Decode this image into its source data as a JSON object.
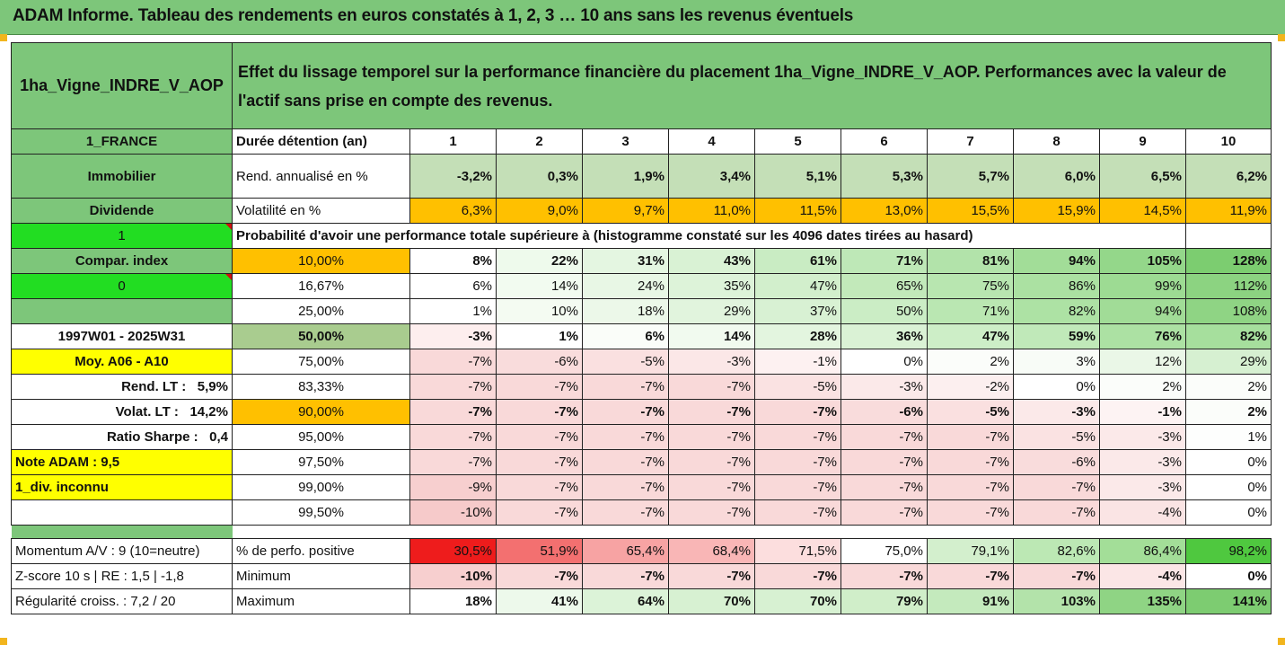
{
  "header": {
    "title": "ADAM Informe. Tableau des rendements en euros constatés à 1, 2, 3 … 10 ans sans les revenus éventuels"
  },
  "left": {
    "asset": "1ha_Vigne_INDRE_V_AOP",
    "country": "1_FRANCE",
    "category": "Immobilier",
    "dividend_label": "Dividende",
    "dividend_value": "1",
    "compar_index": "Compar. index",
    "compar_value": "0",
    "period": "1997W01 - 2025W31",
    "moy": "Moy. A06 - A10",
    "rend_lt_label": "Rend. LT :",
    "rend_lt_value": "5,9%",
    "volat_lt_label": "Volat. LT :",
    "volat_lt_value": "14,2%",
    "sharpe_label": "Ratio Sharpe :",
    "sharpe_value": "0,4",
    "note": "Note ADAM : 9,5",
    "div": "1_div. inconnu",
    "momentum": "Momentum A/V : 9 (10=neutre)",
    "zscore": "Z-score 10 s  |  RE : 1,5  |  -1,8",
    "regularite": "Régularité croiss. : 7,2 / 20"
  },
  "description": "Effet du lissage temporel sur la performance financière du placement 1ha_Vigne_INDRE_V_AOP. Performances avec la valeur de l'actif sans prise en compte des revenus.",
  "row_labels": {
    "duree": "Durée détention (an)",
    "rend": "Rend. annualisé en %",
    "volat": "Volatilité en %",
    "proba": "Probabilité d'avoir une performance totale supérieure à (histogramme constaté sur les 4096 dates tirées au hasard)",
    "perfo_pos": "% de perfo. positive",
    "minimum": "Minimum",
    "maximum": "Maximum"
  },
  "years": [
    "1",
    "2",
    "3",
    "4",
    "5",
    "6",
    "7",
    "8",
    "9",
    "10"
  ],
  "rend": [
    "-3,2%",
    "0,3%",
    "1,9%",
    "3,4%",
    "5,1%",
    "5,3%",
    "5,7%",
    "6,0%",
    "6,5%",
    "6,2%"
  ],
  "volat": [
    "6,3%",
    "9,0%",
    "9,7%",
    "11,0%",
    "11,5%",
    "13,0%",
    "15,5%",
    "15,9%",
    "14,5%",
    "11,9%"
  ],
  "quantiles": [
    {
      "label": "10,00%",
      "values": [
        "8%",
        "22%",
        "31%",
        "43%",
        "61%",
        "71%",
        "81%",
        "94%",
        "105%",
        "128%"
      ]
    },
    {
      "label": "16,67%",
      "values": [
        "6%",
        "14%",
        "24%",
        "35%",
        "47%",
        "65%",
        "75%",
        "86%",
        "99%",
        "112%"
      ]
    },
    {
      "label": "25,00%",
      "values": [
        "1%",
        "10%",
        "18%",
        "29%",
        "37%",
        "50%",
        "71%",
        "82%",
        "94%",
        "108%"
      ]
    },
    {
      "label": "50,00%",
      "values": [
        "-3%",
        "1%",
        "6%",
        "14%",
        "28%",
        "36%",
        "47%",
        "59%",
        "76%",
        "82%"
      ]
    },
    {
      "label": "75,00%",
      "values": [
        "-7%",
        "-6%",
        "-5%",
        "-3%",
        "-1%",
        "0%",
        "2%",
        "3%",
        "12%",
        "29%"
      ]
    },
    {
      "label": "83,33%",
      "values": [
        "-7%",
        "-7%",
        "-7%",
        "-7%",
        "-5%",
        "-3%",
        "-2%",
        "0%",
        "2%",
        "2%"
      ]
    },
    {
      "label": "90,00%",
      "values": [
        "-7%",
        "-7%",
        "-7%",
        "-7%",
        "-7%",
        "-6%",
        "-5%",
        "-3%",
        "-1%",
        "2%"
      ]
    },
    {
      "label": "95,00%",
      "values": [
        "-7%",
        "-7%",
        "-7%",
        "-7%",
        "-7%",
        "-7%",
        "-7%",
        "-5%",
        "-3%",
        "1%"
      ]
    },
    {
      "label": "97,50%",
      "values": [
        "-7%",
        "-7%",
        "-7%",
        "-7%",
        "-7%",
        "-7%",
        "-7%",
        "-6%",
        "-3%",
        "0%"
      ]
    },
    {
      "label": "99,00%",
      "values": [
        "-9%",
        "-7%",
        "-7%",
        "-7%",
        "-7%",
        "-7%",
        "-7%",
        "-7%",
        "-3%",
        "0%"
      ]
    },
    {
      "label": "99,50%",
      "values": [
        "-10%",
        "-7%",
        "-7%",
        "-7%",
        "-7%",
        "-7%",
        "-7%",
        "-7%",
        "-4%",
        "0%"
      ]
    }
  ],
  "perfo_pos": [
    "30,5%",
    "51,9%",
    "65,4%",
    "68,4%",
    "71,5%",
    "75,0%",
    "79,1%",
    "82,6%",
    "86,4%",
    "98,2%"
  ],
  "minimum": [
    "-10%",
    "-7%",
    "-7%",
    "-7%",
    "-7%",
    "-7%",
    "-7%",
    "-7%",
    "-4%",
    "0%"
  ],
  "maximum": [
    "18%",
    "41%",
    "64%",
    "70%",
    "70%",
    "79%",
    "91%",
    "103%",
    "135%",
    "141%"
  ],
  "colors": {
    "header_green": "#7dc67a",
    "bright_green": "#22dd22",
    "yellow": "#ffff00",
    "orange": "#ffc000",
    "red_text": "#d01010"
  }
}
